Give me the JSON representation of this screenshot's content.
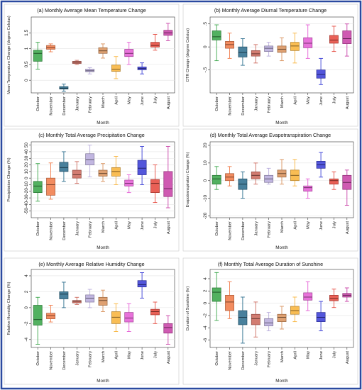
{
  "frame_color": "#2b4aa0",
  "months": [
    "October",
    "November",
    "December",
    "January",
    "February",
    "March",
    "April",
    "May",
    "June",
    "July",
    "August"
  ],
  "month_colors": [
    "#3aa64a",
    "#f07c4a",
    "#2f6f8f",
    "#cc6a5e",
    "#b8acdc",
    "#d9935e",
    "#f8b43c",
    "#e55fd5",
    "#3b3fd6",
    "#e64a3f",
    "#c943a7"
  ],
  "chart_data": [
    {
      "type": "box",
      "title": "(a) Monthly Average Mean Temperature Change",
      "xlabel": "Month",
      "ylabel": "Mean Temperature Change (degree Celsius)",
      "ylim": [
        -0.4,
        2.0
      ],
      "yticks": [
        0,
        0.5,
        1,
        1.5
      ],
      "ytick_labels": [
        "0",
        "0.5",
        "1",
        "1.5"
      ],
      "grid": true,
      "series": [
        {
          "min": 0.35,
          "q1": 0.6,
          "median": 0.85,
          "q3": 0.95,
          "max": 1.2
        },
        {
          "min": 0.9,
          "q1": 0.98,
          "median": 1.03,
          "q3": 1.1,
          "max": 1.15
        },
        {
          "min": -0.35,
          "q1": -0.28,
          "median": -0.25,
          "q3": -0.2,
          "max": -0.12
        },
        {
          "min": 0.5,
          "q1": 0.53,
          "median": 0.57,
          "q3": 0.6,
          "max": 0.63
        },
        {
          "min": 0.2,
          "q1": 0.27,
          "median": 0.3,
          "q3": 0.35,
          "max": 0.4
        },
        {
          "min": 0.7,
          "q1": 0.85,
          "median": 0.93,
          "q3": 1.03,
          "max": 1.15
        },
        {
          "min": 0.05,
          "q1": 0.28,
          "median": 0.35,
          "q3": 0.48,
          "max": 0.75
        },
        {
          "min": 0.5,
          "q1": 0.75,
          "median": 0.85,
          "q3": 0.98,
          "max": 1.2
        },
        {
          "min": 0.2,
          "q1": 0.33,
          "median": 0.37,
          "q3": 0.42,
          "max": 0.55
        },
        {
          "min": 0.95,
          "q1": 1.05,
          "median": 1.1,
          "q3": 1.2,
          "max": 1.45
        },
        {
          "min": 1.25,
          "q1": 1.42,
          "median": 1.5,
          "q3": 1.58,
          "max": 1.8
        }
      ]
    },
    {
      "type": "box",
      "title": "(b) Monthly Average Diurnal Temperature Change",
      "xlabel": "Month",
      "ylabel": "DTR Change (degree Celsius)",
      "ylim": [
        -1.0,
        0.65
      ],
      "yticks": [
        -0.5,
        0,
        0.5
      ],
      "ytick_labels": [
        "-.5",
        "0",
        ".5"
      ],
      "grid": true,
      "series": [
        {
          "min": -0.3,
          "q1": 0.15,
          "median": 0.22,
          "q3": 0.35,
          "max": 0.48
        },
        {
          "min": -0.25,
          "q1": -0.03,
          "median": 0.05,
          "q3": 0.12,
          "max": 0.3
        },
        {
          "min": -0.4,
          "q1": -0.22,
          "median": -0.12,
          "q3": 0.0,
          "max": 0.18
        },
        {
          "min": -0.35,
          "q1": -0.2,
          "median": -0.15,
          "q3": -0.08,
          "max": 0.05
        },
        {
          "min": -0.2,
          "q1": -0.1,
          "median": -0.03,
          "q3": 0.02,
          "max": 0.1
        },
        {
          "min": -0.3,
          "q1": -0.12,
          "median": -0.05,
          "q3": 0.02,
          "max": 0.2
        },
        {
          "min": -0.35,
          "q1": -0.08,
          "median": 0.02,
          "q3": 0.1,
          "max": 0.3
        },
        {
          "min": -0.25,
          "q1": -0.02,
          "median": 0.08,
          "q3": 0.2,
          "max": 0.48
        },
        {
          "min": -0.82,
          "q1": -0.68,
          "median": -0.6,
          "q3": -0.5,
          "max": -0.25
        },
        {
          "min": -0.1,
          "q1": 0.08,
          "median": 0.15,
          "q3": 0.25,
          "max": 0.45
        },
        {
          "min": -0.2,
          "q1": 0.07,
          "median": 0.18,
          "q3": 0.35,
          "max": 0.5
        }
      ]
    },
    {
      "type": "box",
      "title": "(c) Monthly Total Average Precipitation Change",
      "xlabel": "Month",
      "ylabel": "Precipitation Change (%)",
      "ylim": [
        -60,
        55
      ],
      "yticks": [
        -50,
        -40,
        -30,
        -20,
        -10,
        0,
        10,
        20,
        30,
        40,
        50
      ],
      "ytick_labels": [
        "-50",
        "-40",
        "-30",
        "-20",
        "-10",
        "0",
        "10",
        "20",
        "30",
        "40",
        "50"
      ],
      "grid": true,
      "series": [
        {
          "min": -35,
          "q1": -22,
          "median": -12,
          "q3": -5,
          "max": 22
        },
        {
          "min": -32,
          "q1": -26,
          "median": -10,
          "q3": 0,
          "max": 23
        },
        {
          "min": -5,
          "q1": 10,
          "median": 16,
          "q3": 24,
          "max": 40
        },
        {
          "min": -8,
          "q1": 0,
          "median": 5,
          "q3": 12,
          "max": 25
        },
        {
          "min": 2,
          "q1": 20,
          "median": 28,
          "q3": 37,
          "max": 50
        },
        {
          "min": -5,
          "q1": 3,
          "median": 7,
          "q3": 12,
          "max": 22
        },
        {
          "min": -10,
          "q1": 3,
          "median": 10,
          "q3": 16,
          "max": 33
        },
        {
          "min": -22,
          "q1": -12,
          "median": -8,
          "q3": -3,
          "max": 5
        },
        {
          "min": -10,
          "q1": 5,
          "median": 15,
          "q3": 27,
          "max": 48
        },
        {
          "min": -37,
          "q1": -22,
          "median": -8,
          "q3": -2,
          "max": 20
        },
        {
          "min": -45,
          "q1": -28,
          "median": -16,
          "q3": 10,
          "max": 48
        }
      ]
    },
    {
      "type": "box",
      "title": "(d) Monthly Total Average Evapotranspiration Change",
      "xlabel": "Month",
      "ylabel": "Evapotranspiration Change (%)",
      "ylim": [
        -21,
        22
      ],
      "yticks": [
        -20,
        -10,
        0,
        10,
        20
      ],
      "ytick_labels": [
        "-20",
        "-10",
        "0",
        "10",
        "20"
      ],
      "grid": true,
      "series": [
        {
          "min": -5,
          "q1": -2,
          "median": 1,
          "q3": 3,
          "max": 8
        },
        {
          "min": -3,
          "q1": 0,
          "median": 2,
          "q3": 4,
          "max": 8
        },
        {
          "min": -10,
          "q1": -5,
          "median": -2,
          "q3": 1,
          "max": 5
        },
        {
          "min": -2,
          "q1": 1,
          "median": 3,
          "q3": 5,
          "max": 10
        },
        {
          "min": -2,
          "q1": -1,
          "median": 1,
          "q3": 3,
          "max": 7
        },
        {
          "min": -2,
          "q1": 2,
          "median": 4,
          "q3": 6,
          "max": 12
        },
        {
          "min": -3,
          "q1": 0,
          "median": 3,
          "q3": 6,
          "max": 12
        },
        {
          "min": -10,
          "q1": -6,
          "median": -4,
          "q3": -3,
          "max": 1
        },
        {
          "min": 2,
          "q1": 7,
          "median": 9,
          "q3": 11,
          "max": 16
        },
        {
          "min": -5,
          "q1": -2,
          "median": 0,
          "q3": 1,
          "max": 5
        },
        {
          "min": -14,
          "q1": -5,
          "median": -1,
          "q3": 3,
          "max": 6
        }
      ]
    },
    {
      "type": "box",
      "title": "(e) Monthly Average Relative Humidity Change",
      "xlabel": "Month",
      "ylabel": "Relative Humidity Change (%)",
      "ylim": [
        -5.0,
        4.8
      ],
      "yticks": [
        -4,
        -2,
        0,
        2,
        4
      ],
      "ytick_labels": [
        "-4",
        "-2",
        "0",
        "2",
        "4"
      ],
      "grid": true,
      "series": [
        {
          "min": -4.6,
          "q1": -2.2,
          "median": -1.5,
          "q3": 0.3,
          "max": 1.3
        },
        {
          "min": -1.8,
          "q1": -1.4,
          "median": -1.0,
          "q3": -0.7,
          "max": 0.3
        },
        {
          "min": 0.0,
          "q1": 1.1,
          "median": 1.7,
          "q3": 2.0,
          "max": 3.2
        },
        {
          "min": 0.4,
          "q1": 0.6,
          "median": 0.8,
          "q3": 0.9,
          "max": 1.3
        },
        {
          "min": 0.0,
          "q1": 0.7,
          "median": 1.2,
          "q3": 1.6,
          "max": 2.3
        },
        {
          "min": -0.5,
          "q1": 0.3,
          "median": 0.9,
          "q3": 1.3,
          "max": 2.2
        },
        {
          "min": -3.0,
          "q1": -2.0,
          "median": -1.2,
          "q3": -0.5,
          "max": 0.5
        },
        {
          "min": -3.0,
          "q1": -1.8,
          "median": -1.3,
          "q3": -0.6,
          "max": 0.5
        },
        {
          "min": 1.2,
          "q1": 2.6,
          "median": 2.9,
          "q3": 3.4,
          "max": 4.4
        },
        {
          "min": -2.0,
          "q1": -0.9,
          "median": -0.5,
          "q3": -0.2,
          "max": 0.7
        },
        {
          "min": -4.6,
          "q1": -3.2,
          "median": -2.5,
          "q3": -2.0,
          "max": -1.0
        }
      ]
    },
    {
      "type": "box",
      "title": "(f) Monthly Total Average Duration of Sunshine",
      "xlabel": "Month",
      "ylabel": "Duration of Sunshine (hr)",
      "ylim": [
        -7.2,
        5.5
      ],
      "yticks": [
        -6,
        -4,
        -2,
        0,
        2,
        4
      ],
      "ytick_labels": [
        "-6",
        "-4",
        "-2",
        "0",
        "2",
        "4"
      ],
      "grid": true,
      "series": [
        {
          "min": -2.8,
          "q1": 0.3,
          "median": 1.8,
          "q3": 2.5,
          "max": 5.0
        },
        {
          "min": -2.5,
          "q1": -1.2,
          "median": 0.2,
          "q3": 1.3,
          "max": 3.5
        },
        {
          "min": -6.5,
          "q1": -3.5,
          "median": -2.3,
          "q3": -1.2,
          "max": 1.0
        },
        {
          "min": -5.5,
          "q1": -3.5,
          "median": -2.5,
          "q3": -1.8,
          "max": 0.2
        },
        {
          "min": -4.5,
          "q1": -3.7,
          "median": -3.2,
          "q3": -2.5,
          "max": -1.5
        },
        {
          "min": -4.2,
          "q1": -3.0,
          "median": -2.3,
          "q3": -1.8,
          "max": -0.5
        },
        {
          "min": -3.0,
          "q1": -1.8,
          "median": -1.2,
          "q3": -0.5,
          "max": 1.0
        },
        {
          "min": -1.2,
          "q1": 0.5,
          "median": 1.0,
          "q3": 1.7,
          "max": 3.5
        },
        {
          "min": -4.5,
          "q1": -3.0,
          "median": -2.3,
          "q3": -1.5,
          "max": 0.3
        },
        {
          "min": -0.7,
          "q1": 0.4,
          "median": 0.8,
          "q3": 1.3,
          "max": 2.3
        },
        {
          "min": 0.3,
          "q1": 1.0,
          "median": 1.3,
          "q3": 1.6,
          "max": 2.5
        }
      ]
    }
  ]
}
